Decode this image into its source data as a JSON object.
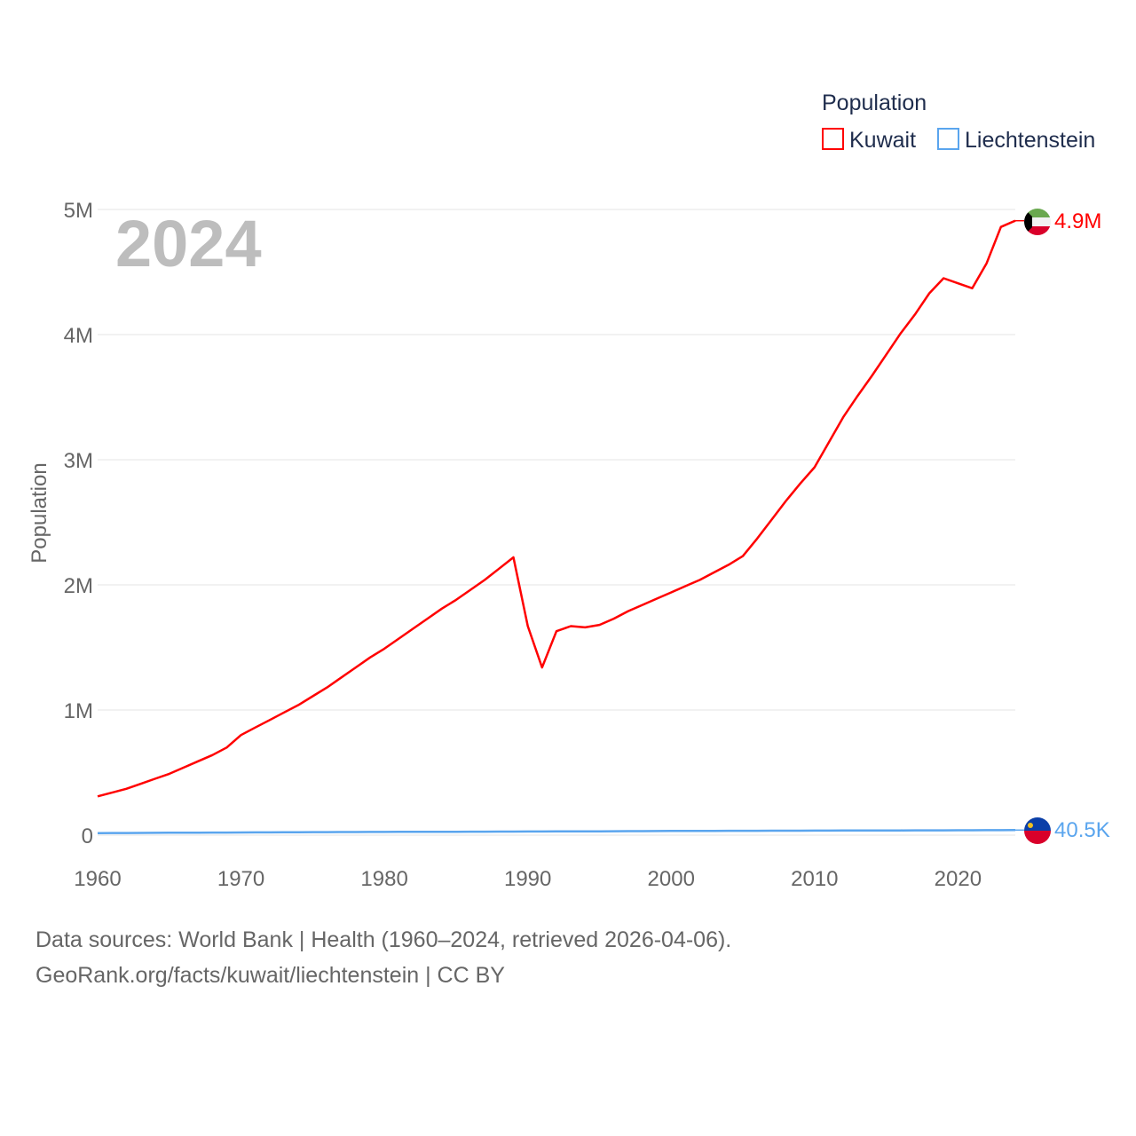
{
  "chart_data": {
    "type": "line",
    "title": "",
    "xlabel": "",
    "ylabel": "Population",
    "year_label": "2024",
    "xlim": [
      1960,
      2024
    ],
    "ylim": [
      0,
      5000000
    ],
    "x_ticks": [
      "1960",
      "1970",
      "1980",
      "1990",
      "2000",
      "2010",
      "2020"
    ],
    "y_ticks": [
      {
        "value": 0,
        "label": "0"
      },
      {
        "value": 1000000,
        "label": "1M"
      },
      {
        "value": 2000000,
        "label": "2M"
      },
      {
        "value": 3000000,
        "label": "3M"
      },
      {
        "value": 4000000,
        "label": "4M"
      },
      {
        "value": 5000000,
        "label": "5M"
      }
    ],
    "grid": true,
    "legend": {
      "title": "Population",
      "placement": "top-right"
    },
    "x_start": 1960,
    "series": [
      {
        "name": "Kuwait",
        "color": "#ff0000",
        "end_label": "4.9M",
        "values": [
          310000,
          340000,
          370000,
          410000,
          450000,
          490000,
          540000,
          590000,
          640000,
          700000,
          800000,
          860000,
          920000,
          980000,
          1040000,
          1110000,
          1180000,
          1260000,
          1340000,
          1420000,
          1490000,
          1570000,
          1650000,
          1730000,
          1810000,
          1880000,
          1960000,
          2040000,
          2130000,
          2220000,
          1670000,
          1340000,
          1630000,
          1670000,
          1660000,
          1680000,
          1730000,
          1790000,
          1840000,
          1890000,
          1940000,
          1990000,
          2040000,
          2100000,
          2160000,
          2230000,
          2370000,
          2520000,
          2670000,
          2810000,
          2940000,
          3140000,
          3340000,
          3510000,
          3670000,
          3840000,
          4010000,
          4160000,
          4330000,
          4450000,
          4410000,
          4370000,
          4570000,
          4860000,
          4910000
        ]
      },
      {
        "name": "Liechtenstein",
        "color": "#5aa5ee",
        "end_label": "40.5K",
        "values": [
          16500,
          16900,
          17300,
          17800,
          18300,
          18800,
          19300,
          19800,
          20300,
          20800,
          21300,
          21800,
          22300,
          22800,
          23300,
          23800,
          24200,
          24600,
          25000,
          25400,
          25800,
          26100,
          26400,
          26700,
          27000,
          27300,
          27600,
          27900,
          28200,
          28500,
          28800,
          29200,
          29600,
          30000,
          30400,
          30800,
          31200,
          31600,
          32000,
          32500,
          33000,
          33400,
          33800,
          34200,
          34500,
          34800,
          35100,
          35300,
          35500,
          35800,
          36000,
          36300,
          36600,
          36800,
          37100,
          37400,
          37700,
          38000,
          38400,
          38600,
          39000,
          39300,
          39600,
          40000,
          40500
        ]
      }
    ]
  },
  "footer": {
    "line1": "Data sources: World Bank | Health (1960–2024, retrieved 2026-04-06).",
    "line2": "GeoRank.org/facts/kuwait/liechtenstein | CC BY"
  }
}
